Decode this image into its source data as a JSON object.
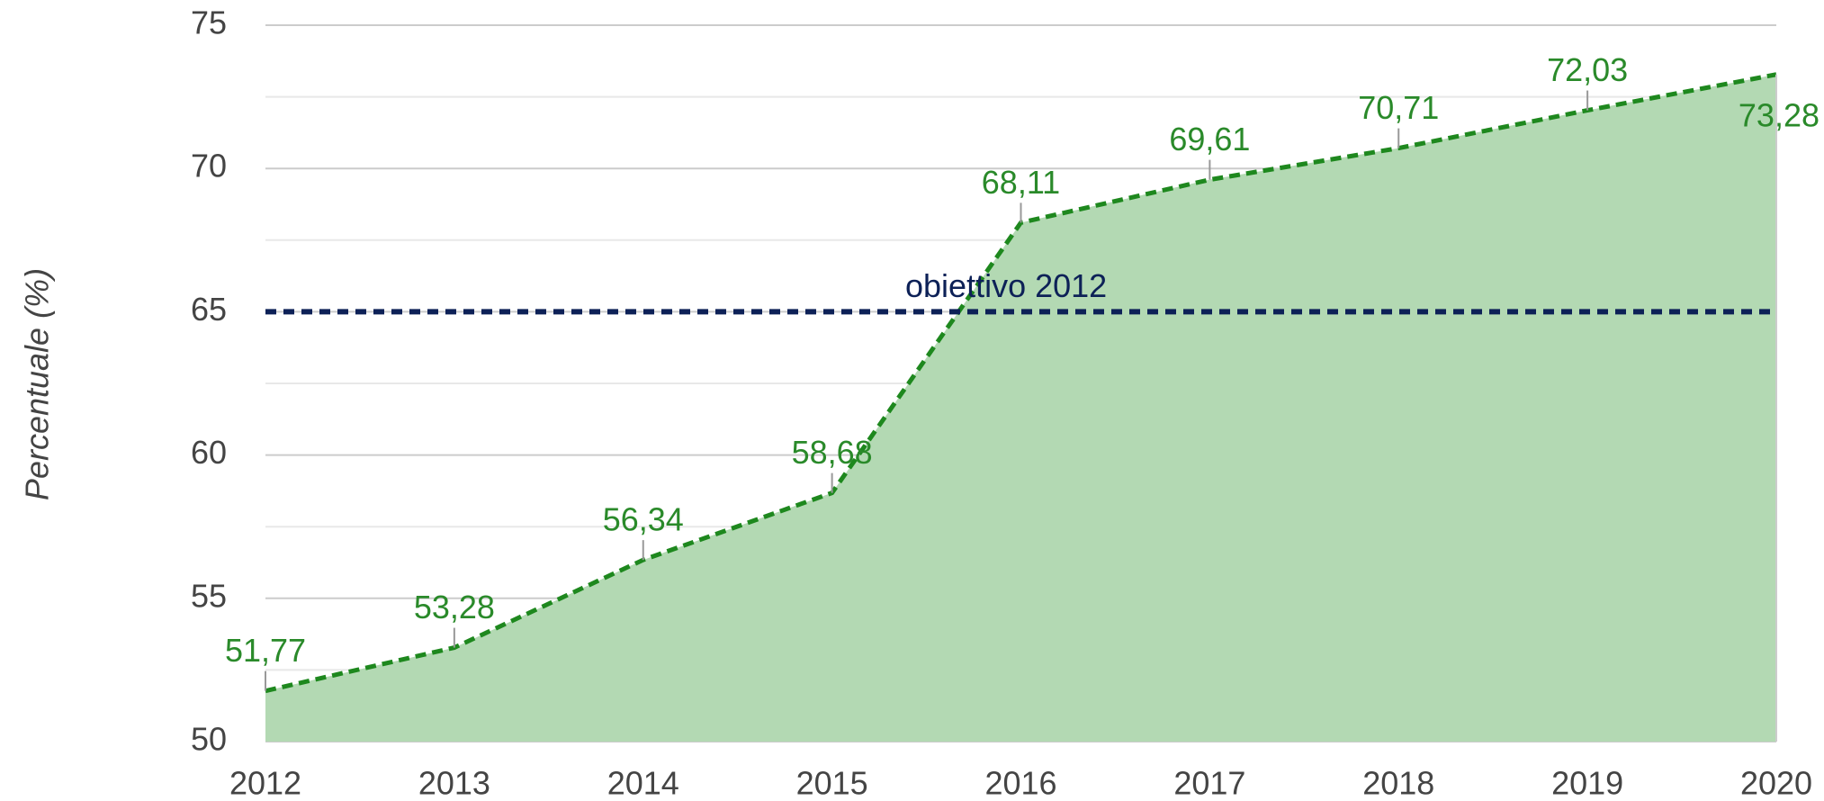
{
  "chart_data": {
    "type": "area",
    "y_label": "Percentuale (%)",
    "categories": [
      "2012",
      "2013",
      "2014",
      "2015",
      "2016",
      "2017",
      "2018",
      "2019",
      "2020"
    ],
    "series": [
      {
        "color": "#1e881e",
        "fill": "#b3d9b3",
        "values": [
          51.77,
          53.28,
          56.34,
          58.68,
          68.11,
          69.61,
          70.71,
          72.03,
          73.28
        ],
        "value_labels": [
          "51,77",
          "53,28",
          "56,34",
          "58,68",
          "68,11",
          "69,61",
          "70,71",
          "72,03",
          "73,28"
        ]
      }
    ],
    "reference_line": {
      "value": 65,
      "label": "obiettivo 2012",
      "color": "#0d2157"
    },
    "ylim": [
      50,
      75
    ],
    "yticks": [
      50,
      55,
      60,
      65,
      70,
      75
    ],
    "yminorticks": [
      52.5,
      57.5,
      62.5,
      67.5,
      72.5
    ],
    "grid": true
  }
}
